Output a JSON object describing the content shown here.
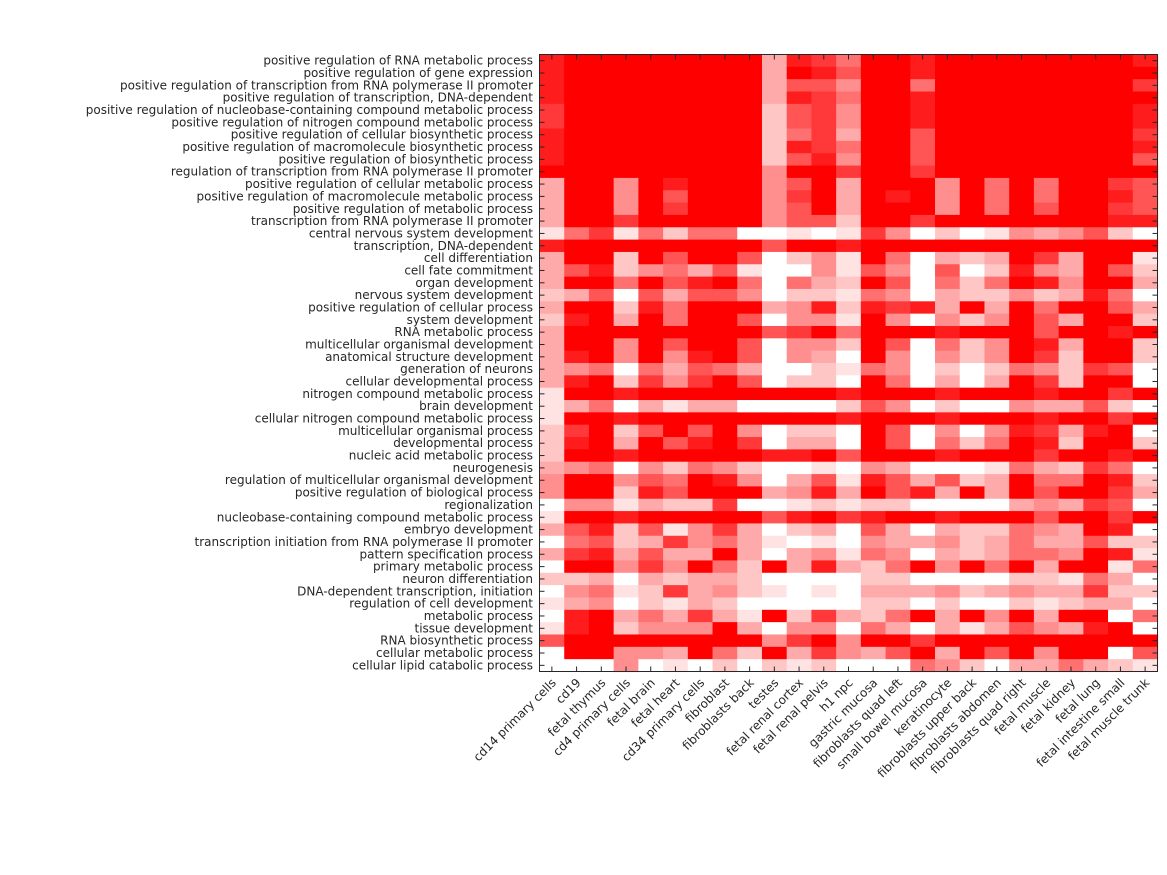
{
  "chart_data": {
    "type": "heatmap",
    "title": "",
    "xlabel": "",
    "ylabel": "",
    "value_scale": "0 (white) to 9 (full red), relative intensity",
    "color_low": "#ffffff",
    "color_high": "#ff0000",
    "columns": [
      "cd14 primary cells",
      "cd19",
      "fetal thymus",
      "cd4 primary cells",
      "fetal brain",
      "fetal heart",
      "cd34 primary cells",
      "fibroblast",
      "fibroblasts back",
      "testes",
      "fetal renal cortex",
      "fetal renal pelvis",
      "h1 npc",
      "gastric mucosa",
      "fibroblasts quad left",
      "small bowel mucosa",
      "keratinocyte",
      "fibroblasts upper back",
      "fibroblasts abdomen",
      "fibroblasts quad right",
      "fetal muscle",
      "fetal kidney",
      "fetal lung",
      "fetal intestine small",
      "fetal muscle trunk"
    ],
    "rows": [
      "positive regulation of RNA metabolic process",
      "positive regulation of gene expression",
      "positive regulation of transcription from RNA polymerase II promoter",
      "positive regulation of transcription, DNA-dependent",
      "positive regulation of nucleobase-containing compound metabolic process",
      "positive regulation of nitrogen compound metabolic process",
      "positive regulation of cellular biosynthetic process",
      "positive regulation of macromolecule biosynthetic process",
      "positive regulation of biosynthetic process",
      "regulation of transcription from RNA polymerase II promoter",
      "positive regulation of cellular metabolic process",
      "positive regulation of macromolecule metabolic process",
      "positive regulation of metabolic process",
      "transcription from RNA polymerase II promoter",
      "central nervous system development",
      "transcription, DNA-dependent",
      "cell differentiation",
      "cell fate commitment",
      "organ development",
      "nervous system development",
      "positive regulation of cellular process",
      "system development",
      "RNA metabolic process",
      "multicellular organismal development",
      "anatomical structure development",
      "generation of neurons",
      "cellular developmental process",
      "nitrogen compound metabolic process",
      "brain development",
      "cellular nitrogen compound metabolic process",
      "multicellular organismal process",
      "developmental process",
      "nucleic acid metabolic process",
      "neurogenesis",
      "regulation of multicellular organismal development",
      "positive regulation of biological process",
      "regionalization",
      "nucleobase-containing compound metabolic process",
      "embryo development",
      "transcription initiation from RNA polymerase II promoter",
      "pattern specification process",
      "primary metabolic process",
      "neuron differentiation",
      "DNA-dependent transcription, initiation",
      "regulation of cell development",
      "metabolic process",
      "tissue development",
      "RNA biosynthetic process",
      "cellular metabolic process",
      "cellular lipid catabolic process"
    ],
    "values": [
      "8999999993875998999999998",
      "8999999993986998999999999",
      "8999999993664995999999997",
      "8999999993875998999999999",
      "7999999992674998999999998",
      "7999999992674998999999998",
      "8999999992573996999999997",
      "8999999992875996999999998",
      "8999999992684996999999996",
      "9999999994997997999999999",
      "3994989994693999495959976",
      "3994969994793989495959986",
      "3994979994693999495969976",
      "3997999994662997999999988",
      "1571525500101740201434620",
      "8999999996998999999999999",
      "3992969960241950323973991",
      "3682453610041640602843962",
      "3995968950532960525984993",
      "2360636640221540322423850",
      "3992859993482878393959963",
      "2893959960441940424963992",
      "3999999996795999899969989",
      "3994969960442960524983992",
      "3894948960430940424972992",
      "3450536530021540202542760",
      "3892747960220950303972990",
      "1998999999998999899989979",
      "1350313300002640200433620",
      "1998999999998999899989979",
      "2792696940220960404873890",
      "2893968970330960525982992",
      "2998999998896999899979989",
      "3450425420010430001532750",
      "4994659840361863623955982",
      "4992869993483968393969973",
      "0441322700121220000343760",
      "1998999996897899899969979",
      "3682614730230630322543980",
      "0562374531010433423533622",
      "3783633930341540323554981",
      "0994749529383259495939915",
      "2230323320000220000221530",
      "0451273421010333423433722",
      "1340213200000220200212330",
      "0893537319273259394939905",
      "1892444930440530313643890",
      "6999999994794997999999999",
      "0994439529374369396949906",
      "0004010202120005420335321"
    ]
  }
}
